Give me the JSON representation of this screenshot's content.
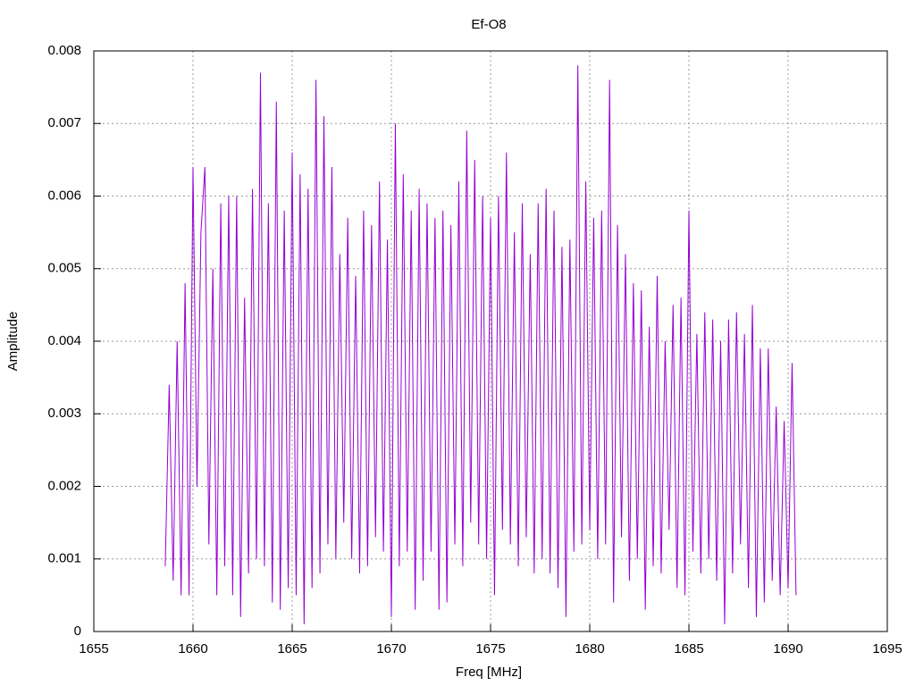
{
  "chart_data": {
    "type": "line",
    "title": "Ef-O8",
    "x_label": "Freq [MHz]",
    "y_label": "Amplitude",
    "color": "#9400d3",
    "grid": true,
    "xlim": [
      1655,
      1695
    ],
    "xticks": [
      1655,
      1660,
      1665,
      1670,
      1675,
      1680,
      1685,
      1690,
      1695
    ],
    "ylim": [
      0,
      0.008
    ],
    "yticks": [
      0,
      0.001,
      0.002,
      0.003,
      0.004,
      0.005,
      0.006,
      0.007,
      0.008
    ],
    "x": [
      1658.6,
      1658.8,
      1659.0,
      1659.2,
      1659.4,
      1659.6,
      1659.8,
      1660.0,
      1660.2,
      1660.4,
      1660.6,
      1660.8,
      1661.0,
      1661.2,
      1661.4,
      1661.6,
      1661.8,
      1662.0,
      1662.2,
      1662.4,
      1662.6,
      1662.8,
      1663.0,
      1663.2,
      1663.4,
      1663.6,
      1663.8,
      1664.0,
      1664.2,
      1664.4,
      1664.6,
      1664.8,
      1665.0,
      1665.2,
      1665.4,
      1665.6,
      1665.8,
      1666.0,
      1666.2,
      1666.4,
      1666.6,
      1666.8,
      1667.0,
      1667.2,
      1667.4,
      1667.6,
      1667.8,
      1668.0,
      1668.2,
      1668.4,
      1668.6,
      1668.8,
      1669.0,
      1669.2,
      1669.4,
      1669.6,
      1669.8,
      1670.0,
      1670.2,
      1670.4,
      1670.6,
      1670.8,
      1671.0,
      1671.2,
      1671.4,
      1671.6,
      1671.8,
      1672.0,
      1672.2,
      1672.4,
      1672.6,
      1672.8,
      1673.0,
      1673.2,
      1673.4,
      1673.6,
      1673.8,
      1674.0,
      1674.2,
      1674.4,
      1674.6,
      1674.8,
      1675.0,
      1675.2,
      1675.4,
      1675.6,
      1675.8,
      1676.0,
      1676.2,
      1676.4,
      1676.6,
      1676.8,
      1677.0,
      1677.2,
      1677.4,
      1677.6,
      1677.8,
      1678.0,
      1678.2,
      1678.4,
      1678.6,
      1678.8,
      1679.0,
      1679.2,
      1679.4,
      1679.6,
      1679.8,
      1680.0,
      1680.2,
      1680.4,
      1680.6,
      1680.8,
      1681.0,
      1681.2,
      1681.4,
      1681.6,
      1681.8,
      1682.0,
      1682.2,
      1682.4,
      1682.6,
      1682.8,
      1683.0,
      1683.2,
      1683.4,
      1683.6,
      1683.8,
      1684.0,
      1684.2,
      1684.4,
      1684.6,
      1684.8,
      1685.0,
      1685.2,
      1685.4,
      1685.6,
      1685.8,
      1686.0,
      1686.2,
      1686.4,
      1686.6,
      1686.8,
      1687.0,
      1687.2,
      1687.4,
      1687.6,
      1687.8,
      1688.0,
      1688.2,
      1688.4,
      1688.6,
      1688.8,
      1689.0,
      1689.2,
      1689.4,
      1689.6,
      1689.8,
      1690.0,
      1690.2,
      1690.4
    ],
    "values": [
      0.0009,
      0.0034,
      0.0007,
      0.004,
      0.0005,
      0.0048,
      0.0005,
      0.0064,
      0.002,
      0.0055,
      0.0064,
      0.0012,
      0.005,
      0.0005,
      0.0059,
      0.0009,
      0.006,
      0.0005,
      0.006,
      0.0002,
      0.0046,
      0.0008,
      0.0061,
      0.001,
      0.0077,
      0.0009,
      0.0059,
      0.0004,
      0.0073,
      0.0003,
      0.0058,
      0.0006,
      0.0066,
      0.0005,
      0.0063,
      0.0001,
      0.0061,
      0.0006,
      0.0076,
      0.0008,
      0.0071,
      0.0012,
      0.0064,
      0.001,
      0.0052,
      0.0015,
      0.0057,
      0.001,
      0.0049,
      0.0008,
      0.0058,
      0.0009,
      0.0056,
      0.0013,
      0.0062,
      0.0011,
      0.0054,
      0.0002,
      0.007,
      0.0009,
      0.0063,
      0.0011,
      0.0058,
      0.0003,
      0.0061,
      0.0007,
      0.0059,
      0.0011,
      0.0057,
      0.0003,
      0.0058,
      0.0004,
      0.0056,
      0.0012,
      0.0062,
      0.0009,
      0.0069,
      0.0015,
      0.0065,
      0.0012,
      0.006,
      0.001,
      0.0057,
      0.0005,
      0.006,
      0.0014,
      0.0066,
      0.0012,
      0.0055,
      0.0009,
      0.0059,
      0.0013,
      0.0052,
      0.0008,
      0.0059,
      0.001,
      0.0061,
      0.0008,
      0.0058,
      0.0006,
      0.0053,
      0.0002,
      0.0054,
      0.0011,
      0.0078,
      0.0012,
      0.0062,
      0.0014,
      0.0057,
      0.001,
      0.0058,
      0.0012,
      0.0076,
      0.0004,
      0.0056,
      0.0013,
      0.0052,
      0.0007,
      0.0048,
      0.001,
      0.0047,
      0.0003,
      0.0042,
      0.0009,
      0.0049,
      0.0008,
      0.004,
      0.0014,
      0.0045,
      0.0006,
      0.0046,
      0.0005,
      0.0058,
      0.0011,
      0.0041,
      0.0008,
      0.0044,
      0.001,
      0.0043,
      0.0007,
      0.004,
      0.0001,
      0.0043,
      0.0008,
      0.0044,
      0.0012,
      0.0041,
      0.0006,
      0.0045,
      0.0002,
      0.0039,
      0.0004,
      0.0039,
      0.0007,
      0.0031,
      0.0005,
      0.0029,
      0.0006,
      0.0037,
      0.0005
    ]
  }
}
